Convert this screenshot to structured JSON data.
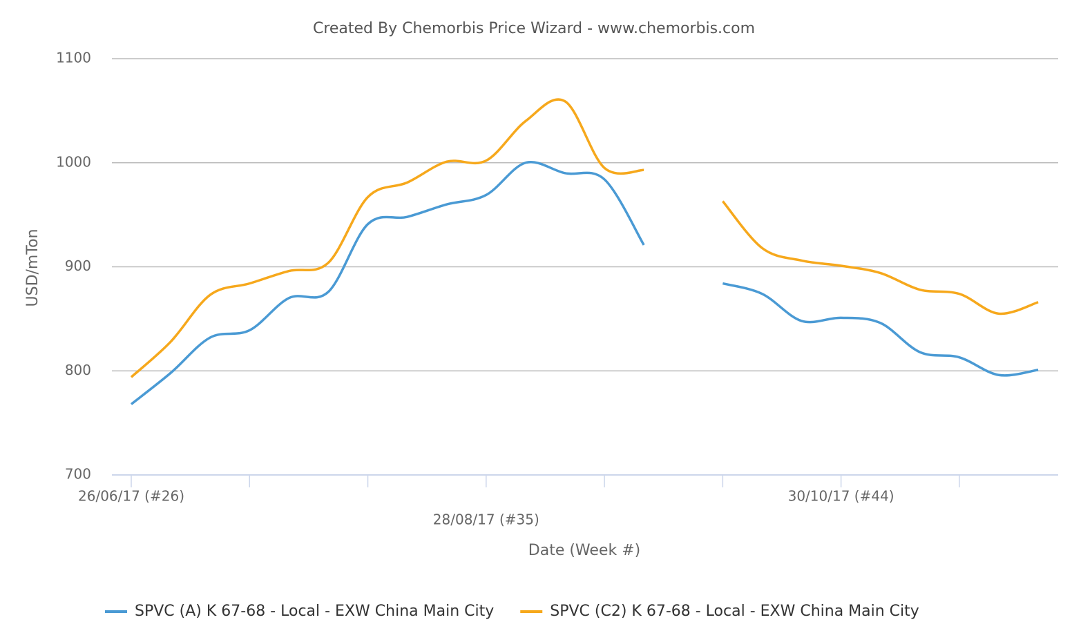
{
  "chart_data": {
    "type": "line",
    "title": "Created By Chemorbis Price Wizard - www.chemorbis.com",
    "x_label": "Date (Week #)",
    "y_label": "USD/mTon",
    "categories": [
      "26/06/17 (#26)",
      null,
      null,
      null,
      null,
      null,
      null,
      null,
      null,
      "28/08/17 (#35)",
      null,
      null,
      null,
      null,
      null,
      null,
      null,
      null,
      "30/10/17 (#44)",
      null,
      null,
      null,
      null,
      null
    ],
    "series": [
      {
        "name": "SPVC (A) K 67-68 - Local - EXW China Main City",
        "color": "#4a9ad4",
        "values": [
          768,
          798,
          832,
          839,
          870,
          876,
          941,
          948,
          960,
          969,
          1000,
          990,
          984,
          921,
          null,
          884,
          874,
          848,
          851,
          846,
          818,
          813,
          796,
          801
        ]
      },
      {
        "name": "SPVC (C2) K 67-68 - Local - EXW China Main City",
        "color": "#f6a81c",
        "values": [
          794,
          828,
          873,
          884,
          896,
          904,
          967,
          981,
          1001,
          1002,
          1040,
          1059,
          995,
          993,
          null,
          963,
          918,
          906,
          901,
          894,
          878,
          874,
          855,
          866
        ]
      }
    ],
    "ylim": [
      700,
      1100
    ],
    "yticks": [
      700,
      800,
      900,
      1000,
      1100
    ],
    "grid": true,
    "legend": "bottom"
  }
}
